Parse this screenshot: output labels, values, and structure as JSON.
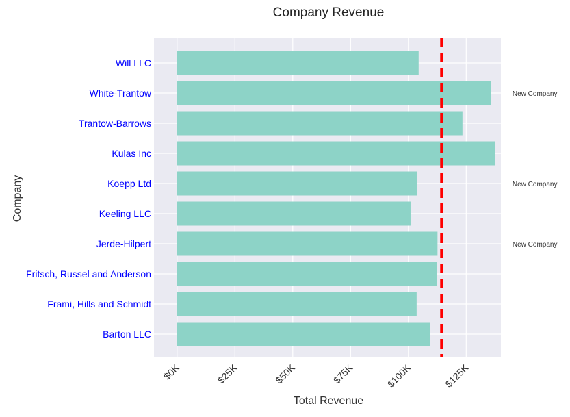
{
  "chart_data": {
    "type": "bar",
    "orientation": "horizontal",
    "title": "Company Revenue",
    "xlabel": "Total Revenue",
    "ylabel": "Company",
    "xlim": [
      -10000,
      140000
    ],
    "xticks": [
      0,
      25000,
      50000,
      75000,
      100000,
      125000
    ],
    "xtick_labels": [
      "$0K",
      "$25K",
      "$50K",
      "$75K",
      "$100K",
      "$125K"
    ],
    "grid": true,
    "categories": [
      "Barton LLC",
      "Frami, Hills and Schmidt",
      "Fritsch, Russel and Anderson",
      "Jerde-Hilpert",
      "Keeling LLC",
      "Koepp Ltd",
      "Kulas Inc",
      "Trantow-Barrows",
      "White-Trantow",
      "Will LLC"
    ],
    "values": [
      109438.5,
      103569.59,
      112214.71,
      112591.43,
      100934.3,
      103660.54,
      137351.96,
      123381.38,
      135841.99,
      104437.6
    ],
    "average_line": {
      "value": 114342,
      "color": "#ff0000",
      "style": "dashed"
    },
    "annotations": [
      {
        "text": "New Company",
        "x": 145000,
        "category": "White-Trantow"
      },
      {
        "text": "New Company",
        "x": 145000,
        "category": "Koepp Ltd"
      },
      {
        "text": "New Company",
        "x": 145000,
        "category": "Jerde-Hilpert"
      }
    ],
    "colors": {
      "bar": "#8dd3c7",
      "background": "#eaeaf2",
      "tick_label": "#0000ff"
    }
  }
}
